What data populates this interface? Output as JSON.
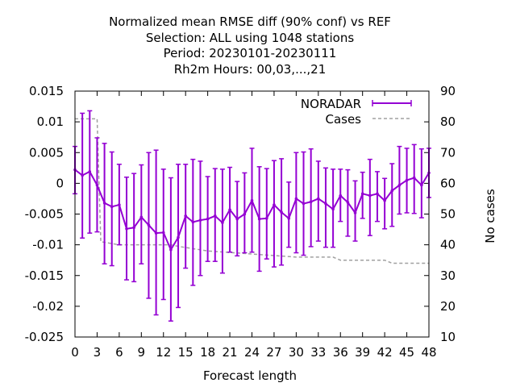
{
  "chart_data": {
    "type": "line",
    "title_lines": [
      "Normalized mean RMSE diff (90% conf) vs REF",
      "Selection: ALL using  1048 stations",
      "Period: 20230101-20230111",
      "Rh2m   Hours:  00,03,...,21"
    ],
    "xlabel": "Forecast length",
    "ylabel_right": "No cases",
    "xlim": [
      0,
      48
    ],
    "ylim": [
      -0.025,
      0.015
    ],
    "y2lim": [
      10,
      90
    ],
    "x_ticks": [
      "0",
      "3",
      "6",
      "9",
      "12",
      "15",
      "18",
      "21",
      "24",
      "27",
      "30",
      "33",
      "36",
      "39",
      "42",
      "45",
      "48"
    ],
    "y_ticks": [
      "0.015",
      "0.01",
      "0.005",
      "0",
      "-0.005",
      "-0.01",
      "-0.015",
      "-0.02",
      "-0.025"
    ],
    "y2_ticks": [
      "90",
      "80",
      "70",
      "60",
      "50",
      "40",
      "30",
      "20",
      "10"
    ],
    "legend_position": "top-right",
    "colors": {
      "noradar": "#9400d3",
      "cases": "#a0a0a0"
    },
    "series": [
      {
        "name": "NORADAR",
        "x": [
          0,
          1,
          2,
          3,
          4,
          5,
          6,
          7,
          8,
          9,
          10,
          11,
          12,
          13,
          14,
          15,
          16,
          17,
          18,
          19,
          20,
          21,
          22,
          23,
          24,
          25,
          26,
          27,
          28,
          29,
          30,
          31,
          32,
          33,
          34,
          35,
          36,
          37,
          38,
          39,
          40,
          41,
          42,
          43,
          44,
          45,
          46,
          47,
          48
        ],
        "y": [
          0.0022,
          0.0013,
          0.0019,
          -0.0003,
          -0.0032,
          -0.0038,
          -0.0035,
          -0.0074,
          -0.0072,
          -0.0055,
          -0.0068,
          -0.0081,
          -0.008,
          -0.0108,
          -0.0088,
          -0.0053,
          -0.0063,
          -0.006,
          -0.0058,
          -0.0053,
          -0.0064,
          -0.0043,
          -0.0058,
          -0.005,
          -0.0028,
          -0.0058,
          -0.0057,
          -0.0035,
          -0.0047,
          -0.0057,
          -0.0025,
          -0.0033,
          -0.003,
          -0.0025,
          -0.0033,
          -0.0042,
          -0.002,
          -0.0031,
          -0.0048,
          -0.0017,
          -0.002,
          -0.0017,
          -0.0028,
          -0.0012,
          -0.0003,
          0.0005,
          0.0009,
          -0.0003,
          0.0017
        ],
        "err_low": [
          -0.0017,
          -0.0089,
          -0.0081,
          -0.0079,
          -0.0131,
          -0.0134,
          -0.01,
          -0.0157,
          -0.016,
          -0.0131,
          -0.0187,
          -0.0214,
          -0.0189,
          -0.0224,
          -0.0202,
          -0.0138,
          -0.0166,
          -0.015,
          -0.0127,
          -0.0127,
          -0.0146,
          -0.0112,
          -0.0118,
          -0.0113,
          -0.0112,
          -0.0143,
          -0.0123,
          -0.0136,
          -0.0133,
          -0.0104,
          -0.0113,
          -0.0117,
          -0.0103,
          -0.0094,
          -0.0104,
          -0.0104,
          -0.0062,
          -0.0086,
          -0.0094,
          -0.0057,
          -0.0085,
          -0.0062,
          -0.0074,
          -0.007,
          -0.005,
          -0.0048,
          -0.0049,
          -0.0056,
          -0.0023
        ],
        "err_high": [
          0.006,
          0.0114,
          0.0118,
          0.0074,
          0.0065,
          0.0051,
          0.0031,
          0.001,
          0.0016,
          0.003,
          0.005,
          0.0054,
          0.0023,
          0.0009,
          0.0031,
          0.0031,
          0.0039,
          0.0036,
          0.0011,
          0.0024,
          0.0023,
          0.0026,
          0.0003,
          0.0017,
          0.0057,
          0.0027,
          0.0024,
          0.0037,
          0.004,
          0.0002,
          0.005,
          0.0051,
          0.0056,
          0.0036,
          0.0025,
          0.0023,
          0.0023,
          0.0022,
          0.0004,
          0.0018,
          0.0039,
          0.0019,
          0.0008,
          0.0032,
          0.006,
          0.0057,
          0.0063,
          0.0056,
          0.0057
        ]
      },
      {
        "name": "Cases",
        "axis": "right",
        "step_x": [
          0,
          3,
          3.5,
          6,
          13,
          14,
          18,
          21,
          24,
          30,
          35,
          36,
          42,
          43,
          48
        ],
        "step_y": [
          81,
          81,
          41,
          40,
          40,
          39.5,
          38,
          37.5,
          37,
          36,
          36,
          35,
          35,
          34,
          34
        ]
      }
    ]
  }
}
